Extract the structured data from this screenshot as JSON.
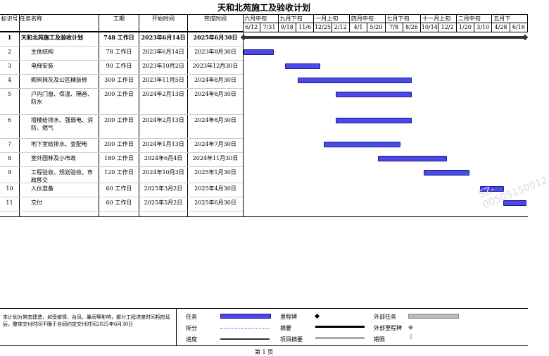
{
  "title": "天和北苑施工及验收计划",
  "columns": {
    "id": "标识号",
    "name": "任务名称",
    "duration": "工期",
    "start": "开始时间",
    "finish": "完成时间"
  },
  "timescale": {
    "top": [
      "六月中旬",
      "九月下旬",
      "一月上旬",
      "四月中旬",
      "七月下旬",
      "十一月上旬",
      "二月中旬",
      "五月下"
    ],
    "bottom": [
      "6/12",
      "7/31",
      "9/18",
      "11/6",
      "12/25",
      "2/12",
      "4/1",
      "5/20",
      "7/8",
      "8/26",
      "10/14",
      "12/2",
      "1/20",
      "3/10",
      "4/28",
      "6/16"
    ]
  },
  "tasks": [
    {
      "id": "1",
      "name": "天和北苑施工及验收计划",
      "duration": "748 工作日",
      "start": "2023年6月14日",
      "finish": "2025年6月30日",
      "summary": true
    },
    {
      "id": "2",
      "name": "主体结构",
      "duration": "78 工作日",
      "start": "2023年6月14日",
      "finish": "2023年8月30日"
    },
    {
      "id": "3",
      "name": "电梯安装",
      "duration": "90 工作日",
      "start": "2023年10月2日",
      "finish": "2023年12月30日"
    },
    {
      "id": "4",
      "name": "砌筑抹灰及公区精装修",
      "duration": "300 工作日",
      "start": "2023年11月5日",
      "finish": "2024年8月30日"
    },
    {
      "id": "5",
      "name": "户内门窗、保温、隔音、防水",
      "duration": "200 工作日",
      "start": "2024年2月13日",
      "finish": "2024年8月30日"
    },
    {
      "id": "6",
      "name": "塔楼给排水、强弱电、消防、燃气",
      "duration": "200 工作日",
      "start": "2024年2月13日",
      "finish": "2024年8月30日"
    },
    {
      "id": "7",
      "name": "地下室给排水、变配电",
      "duration": "200 工作日",
      "start": "2024年1月13日",
      "finish": "2024年7月30日"
    },
    {
      "id": "8",
      "name": "室外园林及小市政",
      "duration": "180 工作日",
      "start": "2024年6月4日",
      "finish": "2024年11月30日"
    },
    {
      "id": "9",
      "name": "工程验收、规划验收、市政移交",
      "duration": "120 工作日",
      "start": "2024年10月3日",
      "finish": "2025年1月30日"
    },
    {
      "id": "10",
      "name": "入伙准备",
      "duration": "60 工作日",
      "start": "2025年3月2日",
      "finish": "2025年4月30日"
    },
    {
      "id": "11",
      "name": "交付",
      "duration": "60 工作日",
      "start": "2025年5月2日",
      "finish": "2025年6月30日"
    }
  ],
  "legend": {
    "note": "本计划为常态建造，如受疫情、台风、暴雨等影响，部分工程进度时间相应延后，整体交付时间不晚于合同约定交付时间2025年6月30日",
    "task": "任务",
    "split": "拆分",
    "progress": "进度",
    "milestone": "里程碑",
    "summary": "摘要",
    "project_summary": "项目摘要",
    "external_task": "外部任务",
    "external_milestone": "外部里程碑",
    "deadline": "期限"
  },
  "footer": "第 1 页",
  "watermark": "SZ-00505150012"
}
